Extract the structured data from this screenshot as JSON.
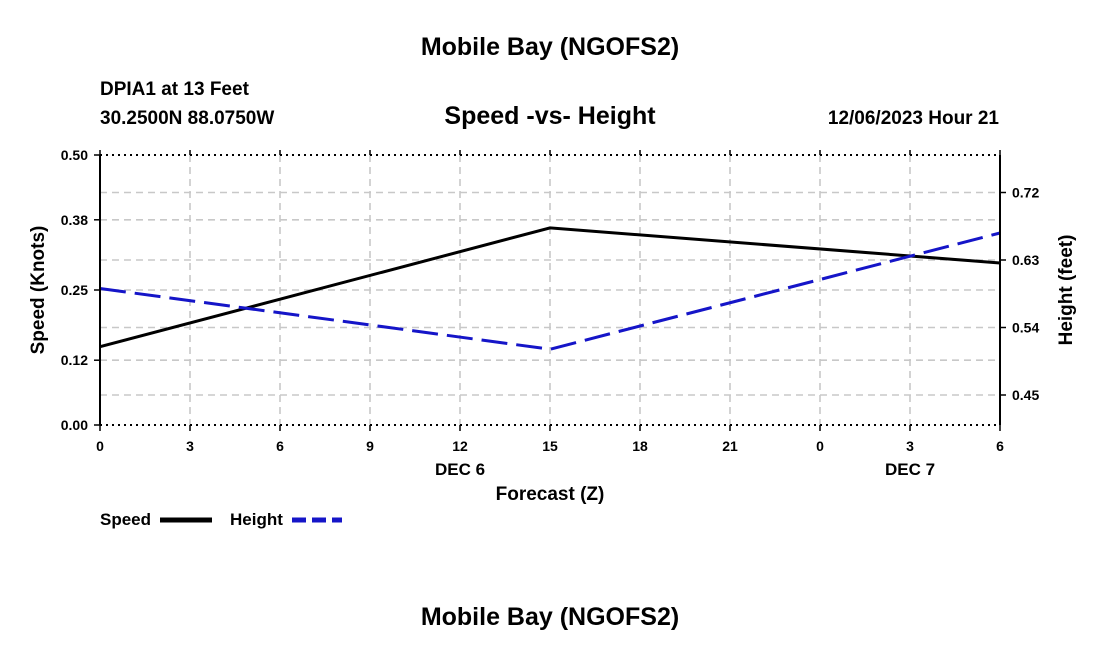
{
  "header": {
    "title_top": "Mobile Bay (NGOFS2)",
    "title_bottom": "Mobile Bay (NGOFS2)",
    "station": "DPIA1 at 13 Feet",
    "coords": "30.2500N  88.0750W",
    "timestamp": "12/06/2023 Hour 21"
  },
  "colors": {
    "speed": "#000000",
    "height": "#1515c8"
  },
  "chart_data": {
    "type": "line",
    "title": "Speed -vs- Height",
    "xlabel": "Forecast (Z)",
    "ylabel_left": "Speed (Knots)",
    "ylabel_right": "Height (feet)",
    "x_tick_labels": [
      "0",
      "3",
      "6",
      "9",
      "12",
      "15",
      "18",
      "21",
      "0",
      "3",
      "6"
    ],
    "x_date_labels": [
      {
        "at_tick": 4,
        "label": "DEC 6"
      },
      {
        "at_tick": 9,
        "label": "DEC 7"
      }
    ],
    "x_range": [
      0,
      30
    ],
    "y_left_ticks": [
      "0.00",
      "0.12",
      "0.25",
      "0.38",
      "0.50"
    ],
    "y_left_range": [
      0,
      0.5
    ],
    "y_right_ticks": [
      "0.45",
      "0.54",
      "0.63",
      "0.72"
    ],
    "y_right_range": [
      0.41,
      0.77
    ],
    "grid": true,
    "legend_placement": "bottom-left",
    "series": [
      {
        "name": "Speed",
        "axis": "left",
        "line": "solid",
        "x": [
          0,
          15,
          30
        ],
        "values": [
          0.145,
          0.365,
          0.3
        ]
      },
      {
        "name": "Height",
        "axis": "right",
        "line": "dashed",
        "x": [
          0,
          15,
          30
        ],
        "values": [
          0.592,
          0.511,
          0.666
        ]
      }
    ]
  }
}
